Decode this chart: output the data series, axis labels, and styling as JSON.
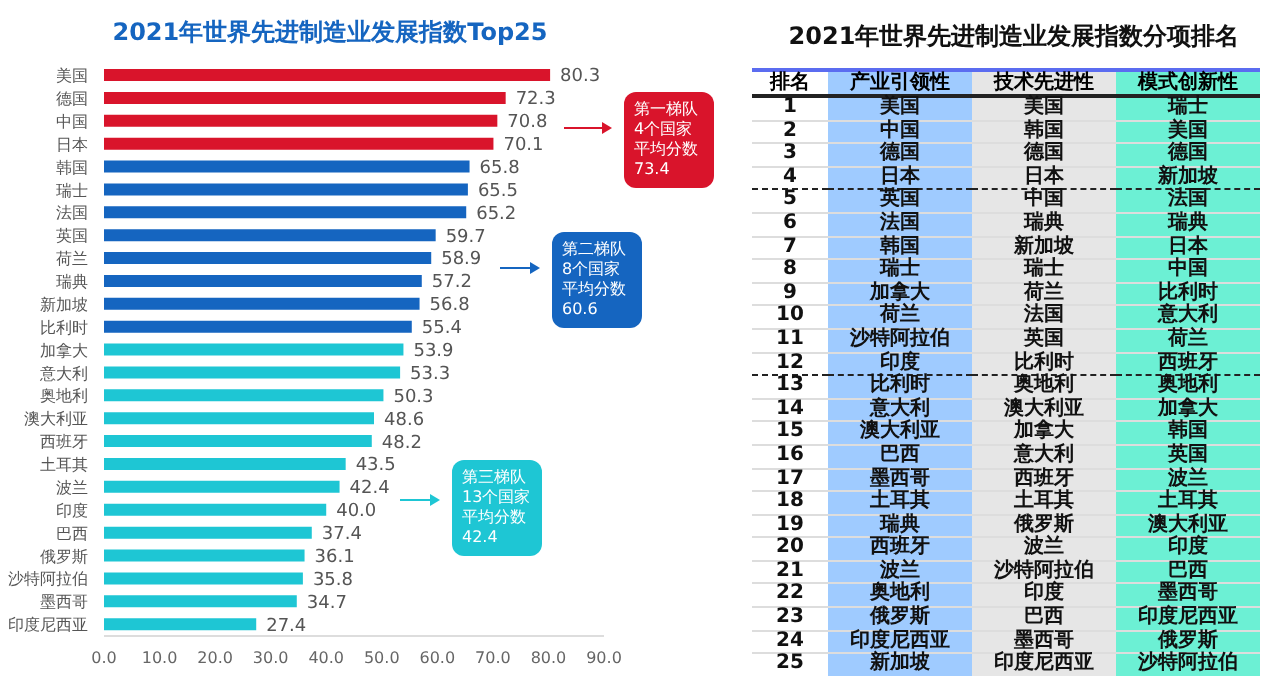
{
  "chart_data": [
    {
      "type": "bar",
      "orientation": "horizontal",
      "title": "2021年世界先进制造业发展指数Top25",
      "categories": [
        "美国",
        "德国",
        "中国",
        "日本",
        "韩国",
        "瑞士",
        "法国",
        "英国",
        "荷兰",
        "瑞典",
        "新加坡",
        "比利时",
        "加拿大",
        "意大利",
        "奥地利",
        "澳大利亚",
        "西班牙",
        "土耳其",
        "波兰",
        "印度",
        "巴西",
        "俄罗斯",
        "沙特阿拉伯",
        "墨西哥",
        "印度尼西亚"
      ],
      "values": [
        80.3,
        72.3,
        70.8,
        70.1,
        65.8,
        65.5,
        65.2,
        59.7,
        58.9,
        57.2,
        56.8,
        55.4,
        53.9,
        53.3,
        50.3,
        48.6,
        48.2,
        43.5,
        42.4,
        40.0,
        37.4,
        36.1,
        35.8,
        34.7,
        27.4
      ],
      "colors": [
        "#d9142b",
        "#d9142b",
        "#d9142b",
        "#d9142b",
        "#1565c0",
        "#1565c0",
        "#1565c0",
        "#1565c0",
        "#1565c0",
        "#1565c0",
        "#1565c0",
        "#1565c0",
        "#1ec6d4",
        "#1ec6d4",
        "#1ec6d4",
        "#1ec6d4",
        "#1ec6d4",
        "#1ec6d4",
        "#1ec6d4",
        "#1ec6d4",
        "#1ec6d4",
        "#1ec6d4",
        "#1ec6d4",
        "#1ec6d4",
        "#1ec6d4"
      ],
      "xlim": [
        0,
        90
      ],
      "xticks": [
        {
          "value": 0,
          "label": "0.0"
        },
        {
          "value": 10,
          "label": "10.0"
        },
        {
          "value": 20,
          "label": "20.0"
        },
        {
          "value": 30,
          "label": "30.0"
        },
        {
          "value": 40,
          "label": "40.0"
        },
        {
          "value": 50,
          "label": "50.0"
        },
        {
          "value": 60,
          "label": "60.0"
        },
        {
          "value": 70,
          "label": "70.0"
        },
        {
          "value": 80,
          "label": "80.0"
        },
        {
          "value": 90,
          "label": "90.0"
        }
      ],
      "value_labels": [
        "80.3",
        "72.3",
        "70.8",
        "70.1",
        "65.8",
        "65.5",
        "65.2",
        "59.7",
        "58.9",
        "57.2",
        "56.8",
        "55.4",
        "53.9",
        "53.3",
        "50.3",
        "48.6",
        "48.2",
        "43.5",
        "42.4",
        "40.0",
        "37.4",
        "36.1",
        "35.8",
        "34.7",
        "27.4"
      ],
      "annotations": [
        "第一梯队4个国家平均分数73.4",
        "第二梯队8个国家平均分数60.6",
        "第三梯队13个国家平均分数42.4"
      ]
    },
    {
      "type": "heatmap",
      "title": "2021年世界先进制造业发展指数分项排名",
      "ylabel": "排名",
      "categories": [
        "产业引领性",
        "技术先进性",
        "模式创新性"
      ],
      "y_categories": [
        "1",
        "2",
        "3",
        "4",
        "5",
        "6",
        "7",
        "8",
        "9",
        "10",
        "11",
        "12",
        "13",
        "14",
        "15",
        "16",
        "17",
        "18",
        "19",
        "20",
        "21",
        "22",
        "23",
        "24",
        "25"
      ],
      "cells": [
        [
          null,
          null,
          null
        ],
        [
          null,
          null,
          null
        ],
        [
          null,
          null,
          null
        ],
        [
          null,
          null,
          null
        ],
        [
          null,
          null,
          null
        ],
        [
          null,
          null,
          null
        ],
        [
          null,
          null,
          null
        ],
        [
          null,
          null,
          null
        ],
        [
          null,
          null,
          null
        ],
        [
          null,
          null,
          null
        ],
        [
          null,
          null,
          null
        ],
        [
          null,
          null,
          null
        ],
        [
          null,
          null,
          null
        ],
        [
          null,
          null,
          null
        ],
        [
          null,
          null,
          null
        ],
        [
          null,
          null,
          null
        ],
        [
          null,
          null,
          null
        ],
        [
          null,
          null,
          null
        ],
        [
          null,
          null,
          null
        ],
        [
          null,
          null,
          null
        ],
        [
          null,
          null,
          null
        ],
        [
          null,
          null,
          null
        ],
        [
          null,
          null,
          null
        ],
        [
          null,
          null,
          null
        ],
        [
          null,
          null,
          null
        ]
      ],
      "cell_labels": [
        [
          "美国",
          "美国",
          "瑞士"
        ],
        [
          "中国",
          "韩国",
          "美国"
        ],
        [
          "德国",
          "德国",
          "德国"
        ],
        [
          "日本",
          "日本",
          "新加坡"
        ],
        [
          "英国",
          "中国",
          "法国"
        ],
        [
          "法国",
          "瑞典",
          "瑞典"
        ],
        [
          "韩国",
          "新加坡",
          "日本"
        ],
        [
          "瑞士",
          "瑞士",
          "中国"
        ],
        [
          "加拿大",
          "荷兰",
          "比利时"
        ],
        [
          "荷兰",
          "法国",
          "意大利"
        ],
        [
          "沙特阿拉伯",
          "英国",
          "荷兰"
        ],
        [
          "印度",
          "比利时",
          "西班牙"
        ],
        [
          "比利时",
          "奥地利",
          "奥地利"
        ],
        [
          "意大利",
          "澳大利亚",
          "加拿大"
        ],
        [
          "澳大利亚",
          "加拿大",
          "韩国"
        ],
        [
          "巴西",
          "意大利",
          "英国"
        ],
        [
          "墨西哥",
          "西班牙",
          "波兰"
        ],
        [
          "土耳其",
          "土耳其",
          "土耳其"
        ],
        [
          "瑞典",
          "俄罗斯",
          "澳大利亚"
        ],
        [
          "西班牙",
          "波兰",
          "印度"
        ],
        [
          "波兰",
          "沙特阿拉伯",
          "巴西"
        ],
        [
          "奥地利",
          "印度",
          "墨西哥"
        ],
        [
          "俄罗斯",
          "巴西",
          "印度尼西亚"
        ],
        [
          "印度尼西亚",
          "墨西哥",
          "俄罗斯"
        ],
        [
          "新加坡",
          "印度尼西亚",
          "沙特阿拉伯"
        ]
      ]
    }
  ]
}
